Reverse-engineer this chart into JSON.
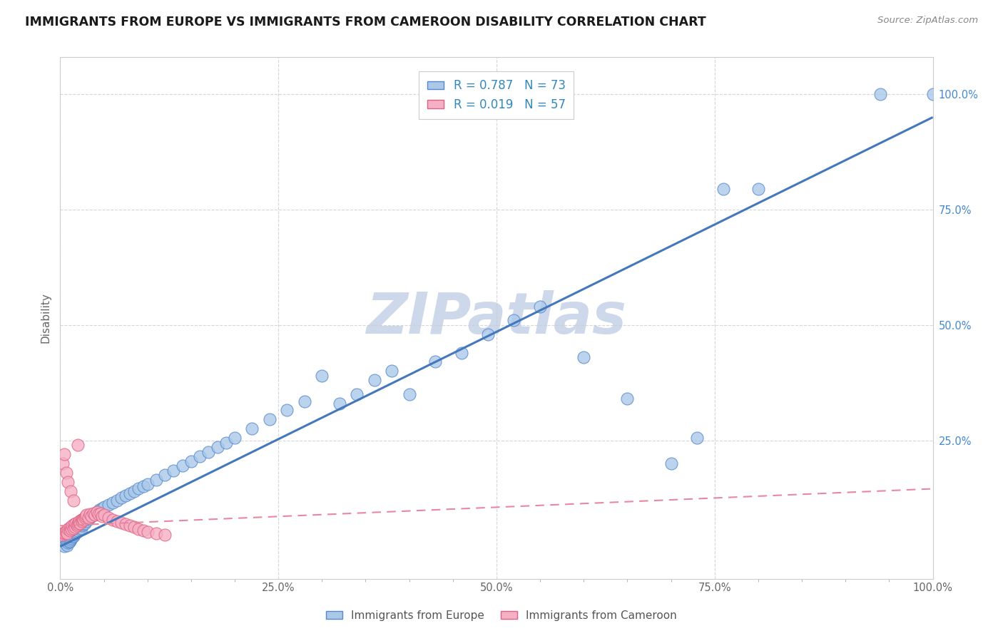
{
  "title": "IMMIGRANTS FROM EUROPE VS IMMIGRANTS FROM CAMEROON DISABILITY CORRELATION CHART",
  "source": "Source: ZipAtlas.com",
  "ylabel": "Disability",
  "xlim": [
    0,
    1.0
  ],
  "ylim": [
    -0.05,
    1.08
  ],
  "xtick_labels": [
    "0.0%",
    "",
    "",
    "",
    "",
    "25.0%",
    "",
    "",
    "",
    "",
    "50.0%",
    "",
    "",
    "",
    "",
    "75.0%",
    "",
    "",
    "",
    "",
    "100.0%"
  ],
  "xtick_vals": [
    0.0,
    0.05,
    0.1,
    0.15,
    0.2,
    0.25,
    0.3,
    0.35,
    0.4,
    0.45,
    0.5,
    0.55,
    0.6,
    0.65,
    0.7,
    0.75,
    0.8,
    0.85,
    0.9,
    0.95,
    1.0
  ],
  "ytick_right_labels": [
    "25.0%",
    "50.0%",
    "75.0%",
    "100.0%"
  ],
  "ytick_vals": [
    0.25,
    0.5,
    0.75,
    1.0
  ],
  "europe_color": "#aac8e8",
  "cameroon_color": "#f5b0c5",
  "europe_edge": "#5588cc",
  "cameroon_edge": "#e06080",
  "europe_line_color": "#4477bb",
  "cameroon_line_color": "#e888a0",
  "europe_R": 0.787,
  "europe_N": 73,
  "cameroon_R": 0.019,
  "cameroon_N": 57,
  "watermark": "ZIPatlas",
  "watermark_color": "#cdd8ea",
  "bg_color": "#ffffff",
  "grid_color": "#cccccc",
  "europe_x": [
    0.005,
    0.007,
    0.008,
    0.009,
    0.01,
    0.011,
    0.012,
    0.013,
    0.014,
    0.015,
    0.016,
    0.017,
    0.018,
    0.019,
    0.02,
    0.022,
    0.024,
    0.025,
    0.026,
    0.028,
    0.03,
    0.032,
    0.034,
    0.036,
    0.038,
    0.04,
    0.042,
    0.045,
    0.048,
    0.05,
    0.055,
    0.06,
    0.065,
    0.07,
    0.075,
    0.08,
    0.085,
    0.09,
    0.095,
    0.1,
    0.11,
    0.12,
    0.13,
    0.14,
    0.15,
    0.16,
    0.17,
    0.18,
    0.19,
    0.2,
    0.22,
    0.24,
    0.26,
    0.28,
    0.3,
    0.32,
    0.34,
    0.36,
    0.38,
    0.4,
    0.43,
    0.46,
    0.49,
    0.52,
    0.55,
    0.6,
    0.65,
    0.7,
    0.73,
    0.76,
    0.8,
    0.94,
    1.0
  ],
  "europe_y": [
    0.02,
    0.025,
    0.022,
    0.028,
    0.03,
    0.032,
    0.035,
    0.038,
    0.04,
    0.042,
    0.045,
    0.048,
    0.05,
    0.052,
    0.055,
    0.058,
    0.06,
    0.065,
    0.068,
    0.07,
    0.075,
    0.08,
    0.082,
    0.085,
    0.088,
    0.09,
    0.095,
    0.1,
    0.102,
    0.105,
    0.11,
    0.115,
    0.12,
    0.125,
    0.13,
    0.135,
    0.14,
    0.145,
    0.15,
    0.155,
    0.165,
    0.175,
    0.185,
    0.195,
    0.205,
    0.215,
    0.225,
    0.235,
    0.245,
    0.255,
    0.275,
    0.295,
    0.315,
    0.335,
    0.39,
    0.33,
    0.35,
    0.38,
    0.4,
    0.35,
    0.42,
    0.44,
    0.48,
    0.51,
    0.54,
    0.43,
    0.34,
    0.2,
    0.255,
    0.795,
    0.795,
    1.0,
    1.0
  ],
  "cameroon_x": [
    0.003,
    0.004,
    0.005,
    0.006,
    0.007,
    0.008,
    0.009,
    0.01,
    0.011,
    0.012,
    0.013,
    0.014,
    0.015,
    0.016,
    0.017,
    0.018,
    0.019,
    0.02,
    0.021,
    0.022,
    0.023,
    0.024,
    0.025,
    0.026,
    0.027,
    0.028,
    0.029,
    0.03,
    0.032,
    0.034,
    0.036,
    0.038,
    0.04,
    0.042,
    0.044,
    0.046,
    0.048,
    0.05,
    0.055,
    0.06,
    0.065,
    0.07,
    0.075,
    0.08,
    0.085,
    0.09,
    0.095,
    0.1,
    0.11,
    0.12,
    0.003,
    0.005,
    0.007,
    0.009,
    0.012,
    0.015,
    0.02
  ],
  "cameroon_y": [
    0.045,
    0.048,
    0.05,
    0.052,
    0.055,
    0.048,
    0.058,
    0.06,
    0.055,
    0.062,
    0.058,
    0.065,
    0.06,
    0.068,
    0.062,
    0.07,
    0.065,
    0.068,
    0.072,
    0.075,
    0.07,
    0.078,
    0.075,
    0.08,
    0.078,
    0.082,
    0.085,
    0.088,
    0.082,
    0.09,
    0.085,
    0.092,
    0.088,
    0.095,
    0.09,
    0.092,
    0.085,
    0.088,
    0.082,
    0.078,
    0.075,
    0.072,
    0.068,
    0.065,
    0.062,
    0.058,
    0.055,
    0.052,
    0.048,
    0.045,
    0.2,
    0.22,
    0.18,
    0.16,
    0.14,
    0.12,
    0.24
  ],
  "eu_line_x0": 0.0,
  "eu_line_y0": 0.02,
  "eu_line_x1": 1.0,
  "eu_line_y1": 0.95,
  "cam_line_x0": 0.0,
  "cam_line_y0": 0.065,
  "cam_line_x1": 1.0,
  "cam_line_y1": 0.145
}
